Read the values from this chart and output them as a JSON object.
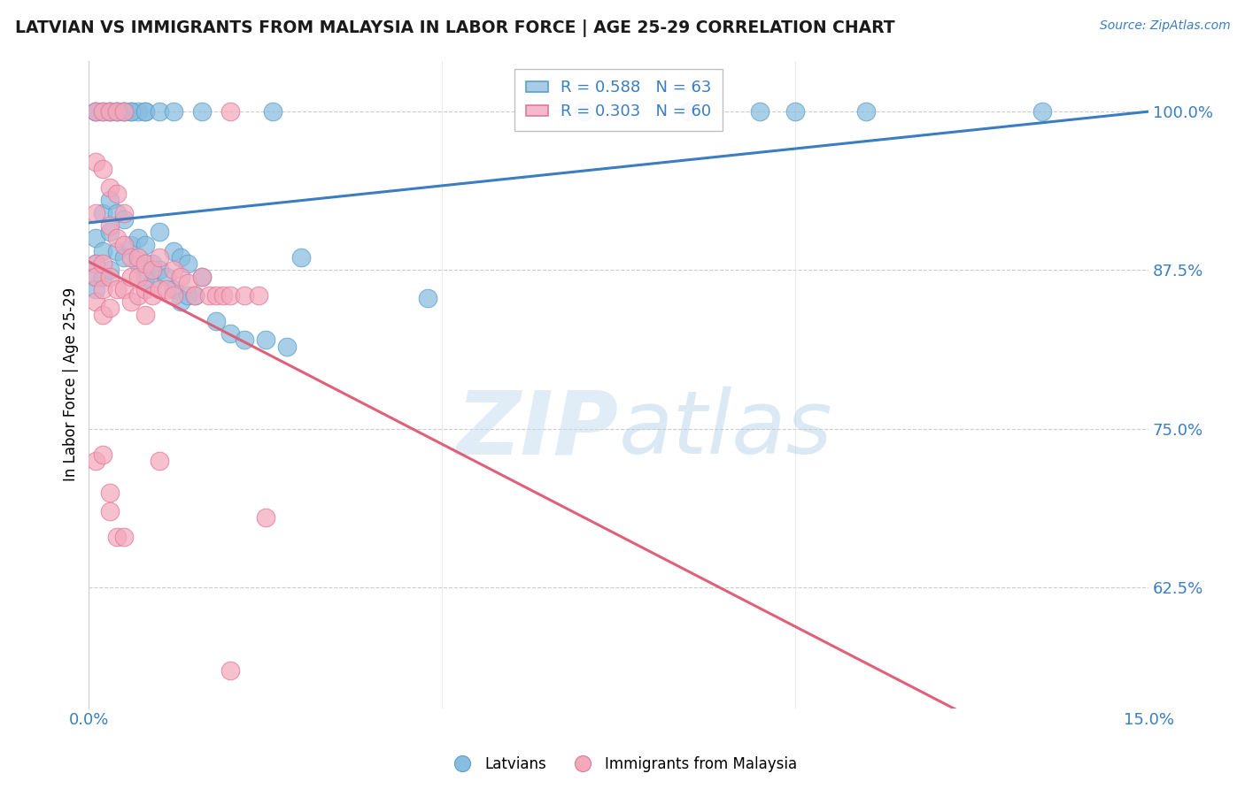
{
  "title": "LATVIAN VS IMMIGRANTS FROM MALAYSIA IN LABOR FORCE | AGE 25-29 CORRELATION CHART",
  "source": "Source: ZipAtlas.com",
  "ylabel": "In Labor Force | Age 25-29",
  "legend_label_blue": "Latvians",
  "legend_label_pink": "Immigrants from Malaysia",
  "R_blue": 0.588,
  "N_blue": 63,
  "R_pink": 0.303,
  "N_pink": 60,
  "blue_color": "#88bde0",
  "blue_edge": "#5a9fc8",
  "pink_color": "#f4a8bc",
  "pink_edge": "#e07898",
  "blue_line_color": "#3a7ec1",
  "pink_line_color": "#e0607a",
  "background_color": "#ffffff",
  "xlim": [
    0.0,
    0.15
  ],
  "ylim": [
    0.53,
    1.04
  ],
  "ytick_vals": [
    0.625,
    0.75,
    0.875,
    1.0
  ],
  "ytick_labels": [
    "62.5%",
    "75.0%",
    "87.5%",
    "100.0%"
  ],
  "grid_color": "#cccccc",
  "grid_style": "--",
  "watermark_color": "#ddeef8",
  "blue_x": [
    0.001,
    0.001,
    0.001,
    0.001,
    0.001,
    0.002,
    0.002,
    0.002,
    0.002,
    0.003,
    0.003,
    0.003,
    0.003,
    0.004,
    0.004,
    0.004,
    0.005,
    0.005,
    0.005,
    0.006,
    0.006,
    0.007,
    0.007,
    0.007,
    0.008,
    0.008,
    0.008,
    0.009,
    0.009,
    0.01,
    0.01,
    0.011,
    0.012,
    0.012,
    0.013,
    0.013,
    0.014,
    0.014,
    0.015,
    0.016,
    0.018,
    0.02,
    0.022,
    0.025,
    0.028,
    0.03,
    0.048,
    0.07,
    0.085,
    0.095,
    0.1,
    0.11,
    0.135,
    0.001,
    0.003,
    0.004,
    0.005,
    0.006,
    0.008,
    0.01,
    0.012,
    0.016,
    0.026
  ],
  "blue_y": [
    1.0,
    0.9,
    0.88,
    0.87,
    0.86,
    1.0,
    0.92,
    0.89,
    0.87,
    1.0,
    0.93,
    0.905,
    0.875,
    1.0,
    0.92,
    0.89,
    1.0,
    0.915,
    0.885,
    1.0,
    0.895,
    1.0,
    0.9,
    0.88,
    1.0,
    0.895,
    0.87,
    0.88,
    0.865,
    0.905,
    0.875,
    0.87,
    0.89,
    0.86,
    0.885,
    0.85,
    0.88,
    0.855,
    0.855,
    0.87,
    0.835,
    0.825,
    0.82,
    0.82,
    0.815,
    0.885,
    0.853,
    1.0,
    1.0,
    1.0,
    1.0,
    1.0,
    1.0,
    1.0,
    1.0,
    1.0,
    1.0,
    1.0,
    1.0,
    1.0,
    1.0,
    1.0,
    1.0
  ],
  "pink_x": [
    0.001,
    0.001,
    0.001,
    0.001,
    0.001,
    0.001,
    0.002,
    0.002,
    0.002,
    0.002,
    0.002,
    0.003,
    0.003,
    0.003,
    0.003,
    0.003,
    0.004,
    0.004,
    0.004,
    0.004,
    0.005,
    0.005,
    0.005,
    0.005,
    0.006,
    0.006,
    0.006,
    0.007,
    0.007,
    0.007,
    0.008,
    0.008,
    0.008,
    0.009,
    0.009,
    0.01,
    0.01,
    0.011,
    0.012,
    0.012,
    0.013,
    0.014,
    0.015,
    0.016,
    0.017,
    0.018,
    0.019,
    0.02,
    0.02,
    0.022,
    0.024,
    0.001,
    0.002,
    0.003,
    0.003,
    0.004,
    0.005,
    0.01,
    0.02,
    0.025
  ],
  "pink_y": [
    1.0,
    0.96,
    0.92,
    0.88,
    0.87,
    0.85,
    1.0,
    0.955,
    0.88,
    0.86,
    0.84,
    1.0,
    0.94,
    0.91,
    0.87,
    0.845,
    1.0,
    0.935,
    0.9,
    0.86,
    1.0,
    0.92,
    0.895,
    0.86,
    0.885,
    0.87,
    0.85,
    0.885,
    0.87,
    0.855,
    0.88,
    0.86,
    0.84,
    0.875,
    0.855,
    0.885,
    0.86,
    0.86,
    0.875,
    0.855,
    0.87,
    0.865,
    0.855,
    0.87,
    0.855,
    0.855,
    0.855,
    0.855,
    1.0,
    0.855,
    0.855,
    0.725,
    0.73,
    0.7,
    0.685,
    0.665,
    0.665,
    0.725,
    0.56,
    0.68
  ]
}
